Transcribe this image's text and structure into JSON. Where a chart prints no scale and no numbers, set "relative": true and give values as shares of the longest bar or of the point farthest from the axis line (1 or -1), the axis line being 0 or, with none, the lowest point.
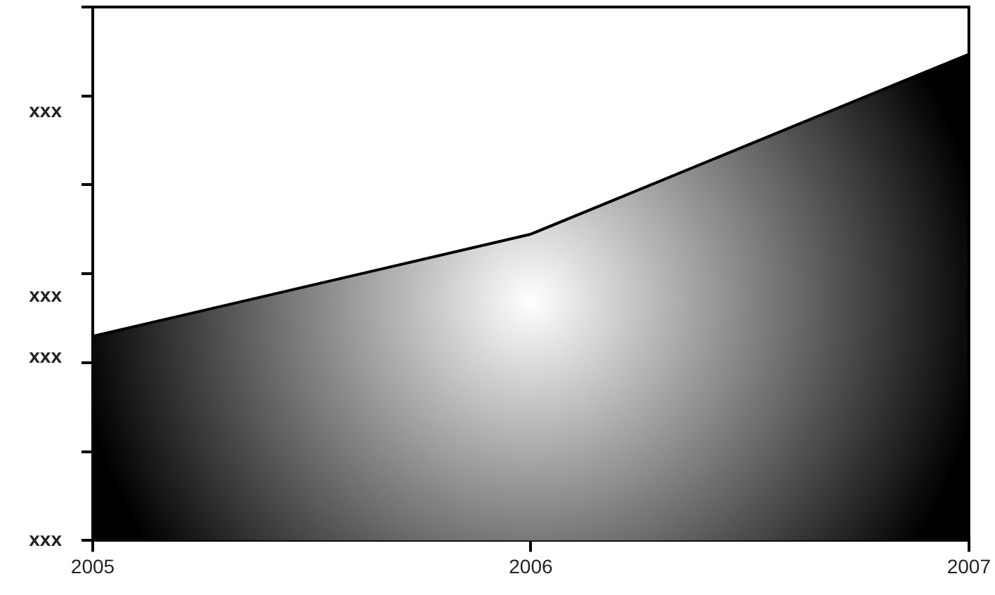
{
  "chart_data": {
    "type": "area",
    "relative": true,
    "categories": [
      "2005",
      "2006",
      "2007"
    ],
    "series": [
      {
        "color": "#000000",
        "values": [
          0.42,
          0.63,
          1
        ]
      }
    ],
    "annotations": [
      "xxx",
      "xxx",
      "xxx",
      "xxx"
    ],
    "grid": false,
    "legend": false
  }
}
